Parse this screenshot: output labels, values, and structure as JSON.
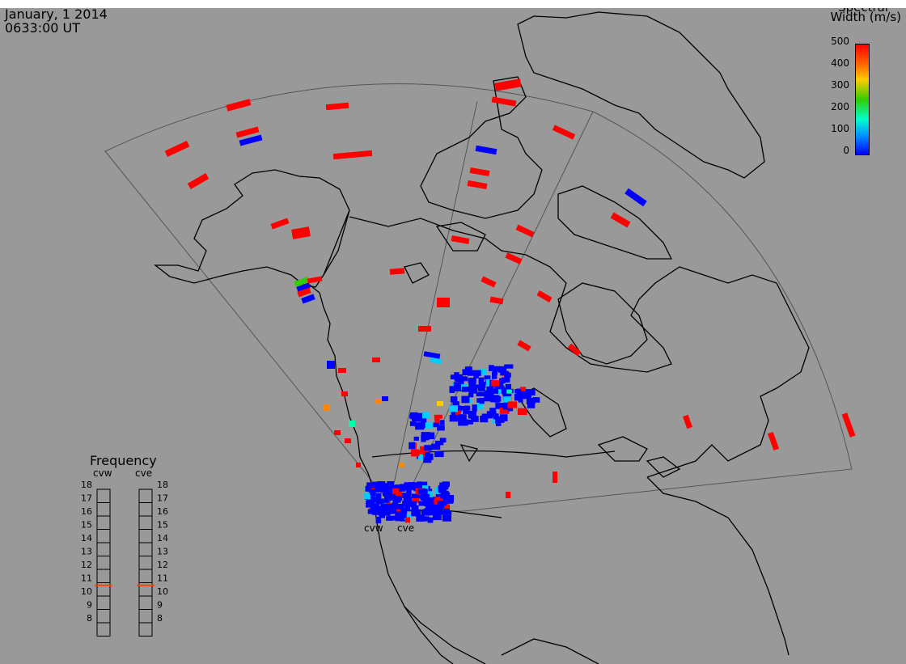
{
  "header": {
    "date": "January, 1 2014",
    "time": "0633:00 UT"
  },
  "colorbar": {
    "title_line1": "Spectral",
    "title_line2": "Width (m/s)",
    "ticks": [
      "500",
      "400",
      "300",
      "200",
      "100",
      "0"
    ],
    "colors": [
      "#ff0000",
      "#ff6600",
      "#ffcc00",
      "#33cc00",
      "#00ffcc",
      "#0099ff",
      "#0000ff"
    ]
  },
  "frequency_panel": {
    "title": "Frequency",
    "radars": [
      "cvw",
      "cve"
    ],
    "ticks": [
      "18",
      "17",
      "16",
      "15",
      "14",
      "13",
      "12",
      "11",
      "10",
      "9",
      "8"
    ],
    "cvw_freq_mhz": 10.8,
    "cve_freq_mhz": 10.8,
    "marker_color": "#ff4400"
  },
  "map": {
    "site_labels": [
      "cvw",
      "cve"
    ]
  }
}
